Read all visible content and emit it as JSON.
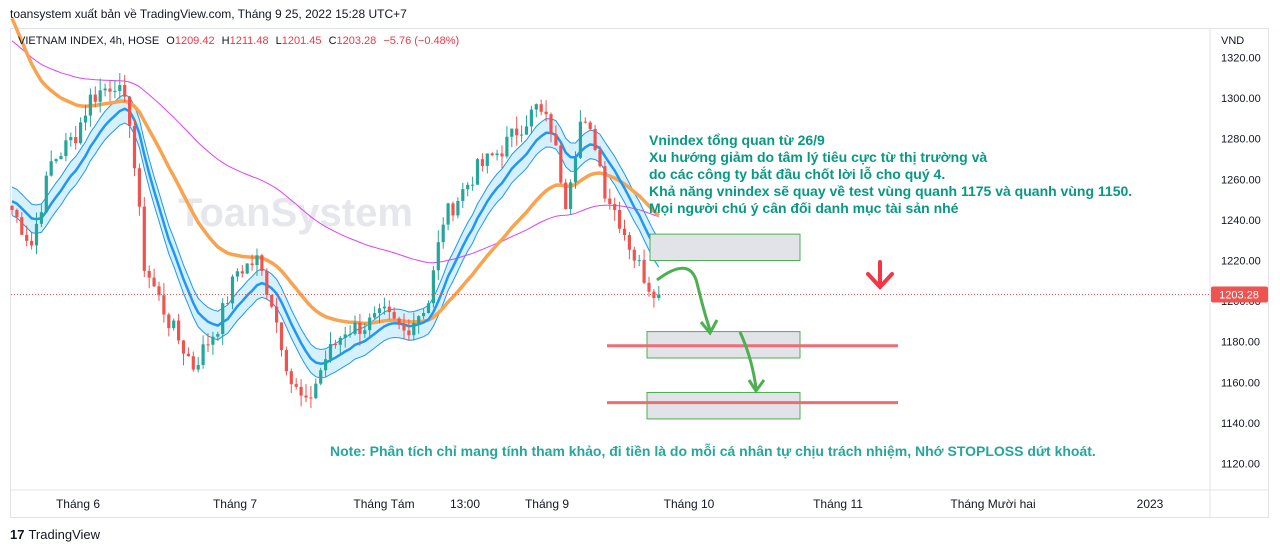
{
  "header": {
    "text": "toansystem xuất bản về TradingView.com, Tháng 9 25, 2022 15:28 UTC+7"
  },
  "legend": {
    "symbol": "VIETNAM INDEX, 4h, HOSE",
    "open_label": "O",
    "open": "1209.42",
    "high_label": "H",
    "high": "1211.48",
    "low_label": "L",
    "low": "1201.45",
    "close_label": "C",
    "close": "1203.28",
    "change": "−5.76 (−0.48%)"
  },
  "footer": {
    "logo": "17",
    "brand": "TradingView"
  },
  "watermark": "ToanSystem",
  "colors": {
    "up": "#26a69a",
    "down": "#ef5350",
    "ema_slow": "#f7a350",
    "ema_long": "#e040fb",
    "band": "#2196f3",
    "band_fill": "#b3e5fc",
    "note": "#26a69a",
    "annotation": "#089981",
    "sr_line": "#f06c75",
    "price_label_bg": "#ef5350",
    "arrow_red": "#f23645",
    "arrow_green": "#4caf50"
  },
  "chart_data": {
    "type": "candlestick",
    "title": "VIETNAM INDEX, 4h, HOSE",
    "currency": "VND",
    "y_ticks": [
      1320,
      1300,
      1280,
      1260,
      1240,
      1220,
      1200,
      1180,
      1160,
      1140,
      1120
    ],
    "ylim": [
      1107,
      1334
    ],
    "last_price": "1203.28",
    "x_ticks": [
      "Tháng 6",
      "Tháng 7",
      "Tháng Tám",
      "13:00",
      "Tháng 9",
      "Tháng 10",
      "Tháng 11",
      "Tháng Mười hai",
      "2023"
    ],
    "price_path": [
      [
        0,
        1245
      ],
      [
        4,
        1228
      ],
      [
        8,
        1268
      ],
      [
        13,
        1282
      ],
      [
        16,
        1300
      ],
      [
        21,
        1308
      ],
      [
        24,
        1290
      ],
      [
        27,
        1218
      ],
      [
        32,
        1190
      ],
      [
        37,
        1168
      ],
      [
        42,
        1188
      ],
      [
        46,
        1215
      ],
      [
        50,
        1220
      ],
      [
        53,
        1200
      ],
      [
        57,
        1160
      ],
      [
        60,
        1148
      ],
      [
        64,
        1172
      ],
      [
        68,
        1186
      ],
      [
        72,
        1188
      ],
      [
        76,
        1193
      ],
      [
        80,
        1185
      ],
      [
        85,
        1200
      ],
      [
        88,
        1240
      ],
      [
        95,
        1265
      ],
      [
        100,
        1275
      ],
      [
        103,
        1284
      ],
      [
        107,
        1295
      ],
      [
        110,
        1285
      ],
      [
        113,
        1250
      ],
      [
        116,
        1288
      ],
      [
        119,
        1278
      ],
      [
        121,
        1255
      ],
      [
        124,
        1240
      ],
      [
        127,
        1222
      ],
      [
        130,
        1208
      ],
      [
        132,
        1205
      ]
    ],
    "zones": [
      {
        "from": "Tháng 10",
        "top": 1233,
        "bottom": 1220
      },
      {
        "from": "Tháng 10",
        "top": 1185,
        "bottom": 1172
      },
      {
        "from": "Tháng 10",
        "top": 1155,
        "bottom": 1142
      }
    ],
    "support_levels": [
      1178,
      1150
    ],
    "annotation_lines": [
      "Vnindex tổng quan từ 26/9",
      "Xu hướng giảm do tâm lý tiêu cực từ thị trường và",
      "do các công ty bắt đầu chốt lời lỗ cho quý 4.",
      "Khả năng vnindex sẽ quay về test vùng quanh 1175 và quanh vùng 1150.",
      "Mọi người chú ý cân đối danh mục tài sản nhé"
    ],
    "note": "Note: Phân tích chỉ mang tính tham khảo, đi tiền là do mỗi cá nhân tự chịu trách nhiệm, Nhớ STOPLOSS dứt khoát."
  }
}
